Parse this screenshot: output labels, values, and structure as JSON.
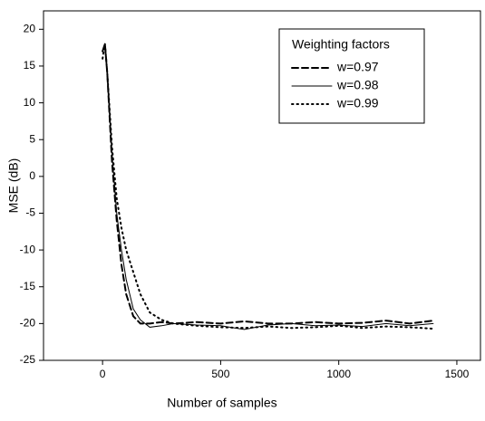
{
  "chart_data": {
    "type": "line",
    "x_label": "Number of samples",
    "y_label": "MSE (dB)",
    "legend_title": "Weighting factors",
    "legend": "top-right",
    "x": [
      0,
      10,
      20,
      40,
      60,
      80,
      100,
      130,
      160,
      200,
      250,
      300,
      400,
      500,
      600,
      700,
      800,
      900,
      1000,
      1100,
      1200,
      1300,
      1400
    ],
    "series": [
      {
        "name": "w=0.97",
        "color": "#000000",
        "line_style": "dashed",
        "values": [
          17,
          18,
          14,
          2,
          -6,
          -12,
          -16,
          -19,
          -20,
          -20,
          -19.8,
          -20,
          -19.8,
          -20,
          -19.7,
          -20,
          -20,
          -19.8,
          -20,
          -19.9,
          -19.6,
          -20,
          -19.6
        ]
      },
      {
        "name": "w=0.98",
        "color": "#000000",
        "line_style": "solid",
        "values": [
          17,
          18,
          14,
          3,
          -5,
          -10,
          -14,
          -18,
          -19.5,
          -20.5,
          -20.3,
          -20,
          -20.2,
          -20.3,
          -20.8,
          -20.2,
          -20,
          -20.3,
          -20.2,
          -20.4,
          -20,
          -20.3,
          -20
        ]
      },
      {
        "name": "w=0.99",
        "color": "#000000",
        "line_style": "dotted",
        "values": [
          16,
          18,
          14,
          4,
          -3,
          -7,
          -10,
          -13,
          -16,
          -18.5,
          -19.5,
          -20,
          -20.3,
          -20.5,
          -20.6,
          -20.4,
          -20.6,
          -20.5,
          -20.3,
          -20.6,
          -20.4,
          -20.5,
          -20.7
        ]
      }
    ],
    "xlim": [
      -250,
      1600
    ],
    "xticks": [
      0,
      500,
      1000,
      1500
    ],
    "ylim": [
      -25,
      22.5
    ],
    "yticks": [
      -25,
      -20,
      -15,
      -10,
      -5,
      0,
      5,
      10,
      15,
      20
    ]
  }
}
